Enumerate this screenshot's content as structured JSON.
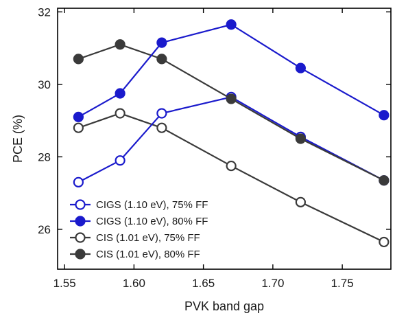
{
  "chart_data": {
    "type": "line",
    "xlabel": "PVK band gap",
    "ylabel": "PCE (%)",
    "xlim": [
      1.545,
      1.785
    ],
    "ylim": [
      24.9,
      32.1
    ],
    "xticks": [
      1.55,
      1.6,
      1.65,
      1.7,
      1.75
    ],
    "xtick_labels": [
      "1.55",
      "1.60",
      "1.65",
      "1.70",
      "1.75"
    ],
    "yticks": [
      26,
      28,
      30,
      32
    ],
    "ytick_labels": [
      "26",
      "28",
      "30",
      "32"
    ],
    "grid": false,
    "legend_position": "bottom-left",
    "x": [
      1.56,
      1.59,
      1.62,
      1.67,
      1.72,
      1.78
    ],
    "series": [
      {
        "name": "CIGS (1.10 eV), 75% FF",
        "values": [
          27.3,
          27.9,
          29.2,
          29.65,
          28.55,
          27.35
        ],
        "color": "#1a1acc",
        "filled": false
      },
      {
        "name": "CIGS (1.10 eV), 80% FF",
        "values": [
          29.1,
          29.75,
          31.15,
          31.65,
          30.45,
          29.15
        ],
        "color": "#1a1acc",
        "filled": true
      },
      {
        "name": "CIS (1.01 eV), 75% FF",
        "values": [
          28.8,
          29.2,
          28.8,
          27.75,
          26.75,
          25.65
        ],
        "color": "#3a3a3a",
        "filled": false
      },
      {
        "name": "CIS (1.01 eV), 80% FF",
        "values": [
          30.7,
          31.1,
          30.7,
          29.6,
          28.5,
          27.35
        ],
        "color": "#3a3a3a",
        "filled": true
      }
    ]
  }
}
